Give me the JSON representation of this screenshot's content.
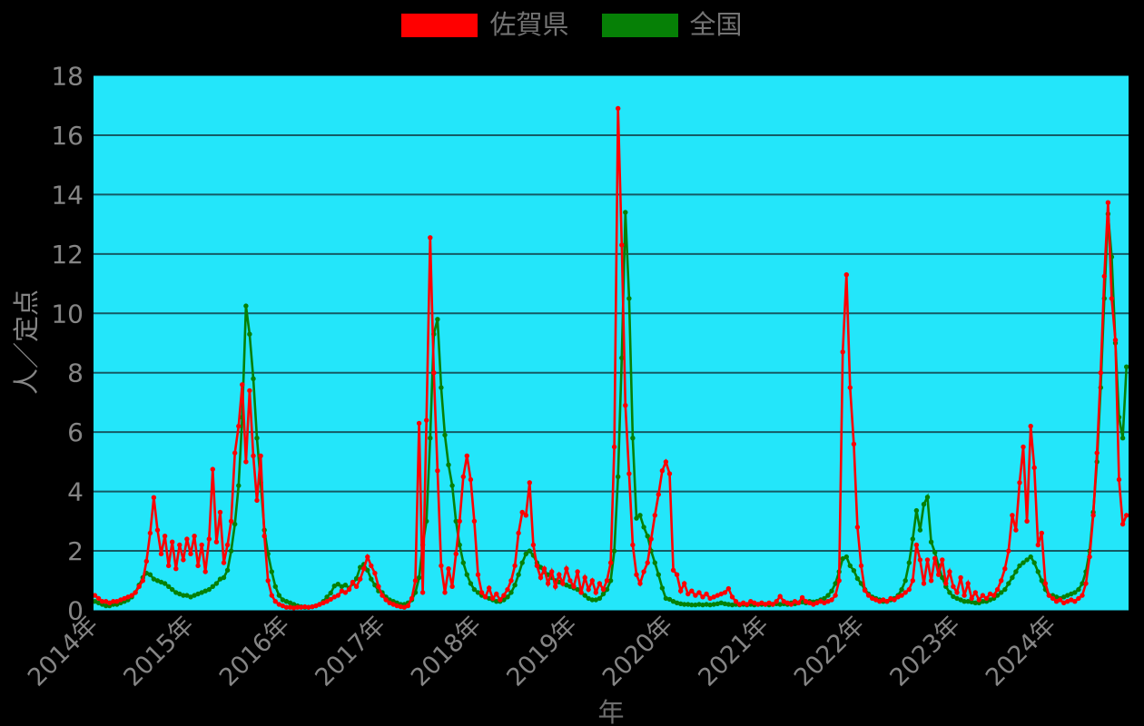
{
  "chart_data": {
    "type": "line",
    "xlabel": "年",
    "ylabel": "人／定点",
    "ylim": [
      0,
      18
    ],
    "ytick_labels": [
      "0",
      "2",
      "4",
      "6",
      "8",
      "10",
      "12",
      "14",
      "16",
      "18"
    ],
    "xtick_labels": [
      "2014年",
      "2015年",
      "2016年",
      "2017年",
      "2018年",
      "2019年",
      "2020年",
      "2021年",
      "2022年",
      "2023年",
      "2024年"
    ],
    "xtick_years": [
      2014,
      2015,
      2016,
      2017,
      2018,
      2019,
      2020,
      2021,
      2022,
      2023,
      2024
    ],
    "x_start": 2014,
    "points_per_year": 26,
    "grid": true,
    "legend_position": "top-center",
    "colors": {
      "figure_bg": "#000000",
      "plot_bg": "#23e6fa",
      "grid": "#145a64",
      "tick_text": "#858585",
      "legend_text": "#737373",
      "axis_title_text": "#6e6e6e",
      "saga": "#ff0000",
      "zenkoku": "#068006"
    },
    "series": [
      {
        "name": "佐賀県",
        "color": "#ff0000",
        "values": [
          0.5,
          0.4,
          0.3,
          0.3,
          0.25,
          0.3,
          0.3,
          0.35,
          0.4,
          0.45,
          0.5,
          0.6,
          0.8,
          1.0,
          1.65,
          2.6,
          3.8,
          2.7,
          1.9,
          2.5,
          1.5,
          2.3,
          1.4,
          2.2,
          1.7,
          2.4,
          1.9,
          2.5,
          1.5,
          2.2,
          1.3,
          2.4,
          4.75,
          2.3,
          3.3,
          1.6,
          2.2,
          3.0,
          5.3,
          6.2,
          7.6,
          5.0,
          7.4,
          5.2,
          3.7,
          5.2,
          2.5,
          1.0,
          0.5,
          0.3,
          0.2,
          0.15,
          0.1,
          0.1,
          0.08,
          0.1,
          0.1,
          0.12,
          0.1,
          0.12,
          0.15,
          0.2,
          0.25,
          0.3,
          0.37,
          0.45,
          0.5,
          0.65,
          0.6,
          0.7,
          0.95,
          0.8,
          1.05,
          1.4,
          1.8,
          1.5,
          1.25,
          0.8,
          0.5,
          0.35,
          0.25,
          0.2,
          0.15,
          0.12,
          0.1,
          0.15,
          0.4,
          1.0,
          6.3,
          0.6,
          6.4,
          12.55,
          8.0,
          4.7,
          1.5,
          0.6,
          1.4,
          0.8,
          1.9,
          3.0,
          4.5,
          5.2,
          4.4,
          3.0,
          1.2,
          0.6,
          0.45,
          0.75,
          0.4,
          0.55,
          0.35,
          0.5,
          0.7,
          1.0,
          1.5,
          2.6,
          3.3,
          3.2,
          4.3,
          2.2,
          1.5,
          1.1,
          1.4,
          0.9,
          1.3,
          0.8,
          1.2,
          0.9,
          1.4,
          1.0,
          0.8,
          1.3,
          0.6,
          1.1,
          0.7,
          1.0,
          0.6,
          0.9,
          0.7,
          1.0,
          1.6,
          5.5,
          16.9,
          12.3,
          6.9,
          4.6,
          2.2,
          1.2,
          0.9,
          1.3,
          1.6,
          2.4,
          3.2,
          3.9,
          4.7,
          5.0,
          4.6,
          1.35,
          1.2,
          0.65,
          0.9,
          0.55,
          0.65,
          0.5,
          0.6,
          0.45,
          0.55,
          0.4,
          0.45,
          0.5,
          0.55,
          0.6,
          0.73,
          0.45,
          0.3,
          0.2,
          0.25,
          0.2,
          0.3,
          0.25,
          0.2,
          0.25,
          0.2,
          0.25,
          0.2,
          0.3,
          0.47,
          0.3,
          0.25,
          0.2,
          0.3,
          0.25,
          0.43,
          0.3,
          0.25,
          0.2,
          0.25,
          0.3,
          0.25,
          0.3,
          0.35,
          0.5,
          1.0,
          8.7,
          11.3,
          7.5,
          5.6,
          2.8,
          1.5,
          0.67,
          0.5,
          0.4,
          0.35,
          0.3,
          0.35,
          0.3,
          0.4,
          0.35,
          0.45,
          0.5,
          0.6,
          0.7,
          1.0,
          2.2,
          1.7,
          0.9,
          1.7,
          1.0,
          1.75,
          1.2,
          1.7,
          0.9,
          1.3,
          0.8,
          0.6,
          1.1,
          0.5,
          0.9,
          0.4,
          0.6,
          0.35,
          0.5,
          0.4,
          0.55,
          0.5,
          0.7,
          1.0,
          1.4,
          2.0,
          3.2,
          2.7,
          4.3,
          5.5,
          3.0,
          6.2,
          4.8,
          2.2,
          2.6,
          0.9,
          0.5,
          0.4,
          0.3,
          0.35,
          0.25,
          0.3,
          0.35,
          0.3,
          0.4,
          0.5,
          0.9,
          1.8,
          3.2,
          5.3,
          8.0,
          11.25,
          13.73,
          10.5,
          9.1,
          4.4,
          2.9,
          3.2
        ]
      },
      {
        "name": "全国",
        "color": "#068006",
        "values": [
          0.3,
          0.25,
          0.2,
          0.15,
          0.15,
          0.2,
          0.2,
          0.25,
          0.3,
          0.35,
          0.45,
          0.6,
          0.85,
          1.1,
          1.25,
          1.2,
          1.05,
          1.0,
          0.95,
          0.9,
          0.8,
          0.7,
          0.6,
          0.55,
          0.5,
          0.5,
          0.45,
          0.5,
          0.55,
          0.6,
          0.65,
          0.7,
          0.8,
          0.9,
          1.05,
          1.1,
          1.35,
          2.0,
          2.9,
          4.2,
          6.5,
          10.25,
          9.3,
          7.8,
          5.8,
          4.3,
          2.7,
          1.9,
          1.3,
          0.8,
          0.5,
          0.35,
          0.3,
          0.25,
          0.2,
          0.15,
          0.12,
          0.1,
          0.1,
          0.12,
          0.15,
          0.2,
          0.3,
          0.45,
          0.58,
          0.82,
          0.88,
          0.8,
          0.85,
          0.75,
          0.9,
          1.07,
          1.45,
          1.55,
          1.35,
          1.05,
          0.85,
          0.65,
          0.6,
          0.45,
          0.35,
          0.3,
          0.25,
          0.2,
          0.2,
          0.25,
          0.35,
          0.6,
          1.1,
          2.2,
          3.0,
          5.8,
          9.3,
          9.8,
          7.5,
          5.9,
          4.9,
          4.2,
          3.0,
          2.2,
          1.6,
          1.2,
          0.9,
          0.7,
          0.6,
          0.5,
          0.45,
          0.4,
          0.35,
          0.3,
          0.3,
          0.35,
          0.45,
          0.6,
          0.85,
          1.2,
          1.6,
          1.9,
          2.0,
          1.85,
          1.6,
          1.45,
          1.3,
          1.2,
          1.1,
          1.0,
          0.95,
          0.9,
          0.85,
          0.8,
          0.75,
          0.7,
          0.6,
          0.5,
          0.4,
          0.35,
          0.35,
          0.4,
          0.55,
          0.7,
          1.0,
          2.0,
          4.5,
          8.5,
          13.4,
          10.5,
          5.8,
          3.1,
          3.2,
          2.8,
          2.5,
          2.0,
          1.6,
          1.2,
          0.75,
          0.4,
          0.37,
          0.3,
          0.25,
          0.22,
          0.2,
          0.2,
          0.18,
          0.18,
          0.2,
          0.18,
          0.2,
          0.18,
          0.2,
          0.22,
          0.25,
          0.22,
          0.2,
          0.18,
          0.2,
          0.18,
          0.2,
          0.18,
          0.2,
          0.18,
          0.2,
          0.2,
          0.2,
          0.18,
          0.2,
          0.22,
          0.2,
          0.22,
          0.2,
          0.25,
          0.22,
          0.25,
          0.28,
          0.25,
          0.3,
          0.28,
          0.3,
          0.35,
          0.4,
          0.5,
          0.65,
          0.9,
          1.3,
          1.74,
          1.8,
          1.5,
          1.34,
          1.07,
          0.9,
          0.7,
          0.55,
          0.45,
          0.4,
          0.35,
          0.3,
          0.3,
          0.35,
          0.4,
          0.5,
          0.7,
          1.0,
          1.6,
          2.4,
          3.36,
          2.7,
          3.57,
          3.81,
          2.3,
          1.95,
          1.5,
          1.1,
          0.8,
          0.6,
          0.46,
          0.4,
          0.35,
          0.3,
          0.3,
          0.28,
          0.25,
          0.25,
          0.3,
          0.3,
          0.35,
          0.4,
          0.5,
          0.6,
          0.7,
          0.9,
          1.1,
          1.3,
          1.5,
          1.6,
          1.7,
          1.8,
          1.6,
          1.3,
          1.0,
          0.7,
          0.5,
          0.5,
          0.45,
          0.4,
          0.45,
          0.5,
          0.55,
          0.6,
          0.7,
          0.9,
          1.3,
          2.0,
          3.3,
          5.0,
          7.5,
          10.5,
          13.35,
          11.9,
          9.0,
          6.5,
          5.8,
          8.2
        ]
      }
    ]
  }
}
